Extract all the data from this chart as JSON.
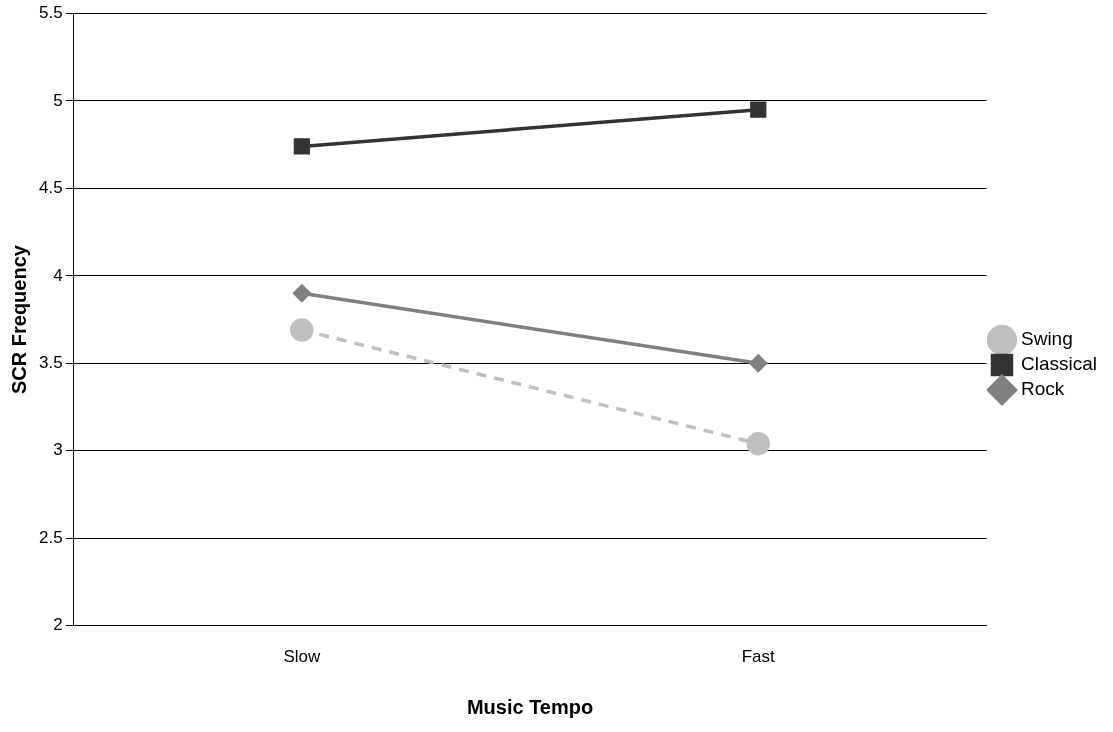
{
  "chart_data": {
    "type": "line",
    "xlabel": "Music Tempo",
    "ylabel": "SCR Frequency",
    "categories": [
      "Slow",
      "Fast"
    ],
    "series": [
      {
        "name": "Swing",
        "color": "#c0c0c0",
        "values": [
          3.69,
          3.04
        ],
        "marker": "circle",
        "line_style": "dashed"
      },
      {
        "name": "Classical",
        "color": "#333333",
        "values": [
          4.74,
          4.95
        ],
        "marker": "square",
        "line_style": "solid"
      },
      {
        "name": "Rock",
        "color": "#808080",
        "values": [
          3.9,
          3.5
        ],
        "marker": "diamond",
        "line_style": "solid"
      }
    ],
    "ylim": [
      2,
      5.5
    ],
    "yticks": [
      2,
      2.5,
      3,
      3.5,
      4,
      4.5,
      5,
      5.5
    ],
    "grid": "y",
    "legend": "right"
  }
}
